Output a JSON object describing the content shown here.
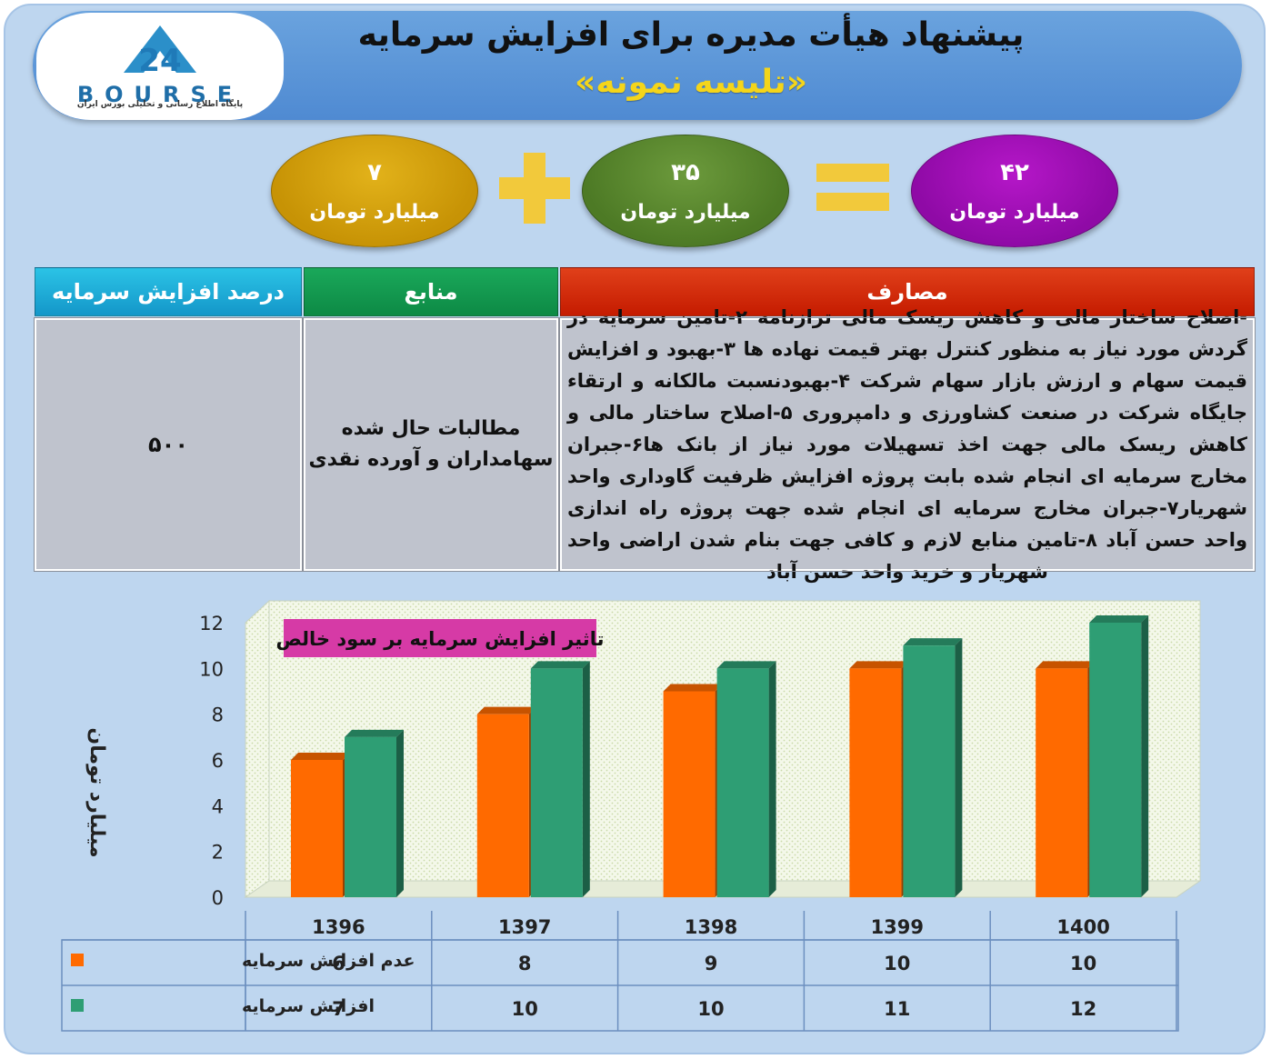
{
  "header": {
    "title": "پیشنهاد هیأت مدیره برای افزایش سرمایه",
    "subtitle": "«تلیسه نمونه»",
    "logo": {
      "wordmark": "BOURSE",
      "mark": "24",
      "caption": "پایگاه اطلاع رسانی و تحلیلی بورس ایران"
    }
  },
  "equation": {
    "left": {
      "value": "۷",
      "unit": "میلیارد تومان",
      "color": "#c99a0a"
    },
    "middle": {
      "value": "۳۵",
      "unit": "میلیارد تومان",
      "color": "#5a8a2e"
    },
    "result": {
      "value": "۴۲",
      "unit": "میلیارد تومان",
      "color": "#a00fb8"
    },
    "operator_color": "#f2c93b"
  },
  "table": {
    "headers": {
      "costs": "مصارف",
      "sources": "منابع",
      "percent": "درصد افزایش سرمایه"
    },
    "costs_text": "-اصلاح ساختار مالی و کاهش ریسک مالی ترازنامه ۲-تامین سرمایه در گردش مورد نیاز به منظور کنترل بهتر قیمت نهاده ها ۳-بهبود و افزایش قیمت سهام و ارزش بازار سهام شرکت ۴-بهبودنسبت مالکانه و ارتقاء جایگاه شرکت در صنعت کشاورزی و دامپروری ۵-اصلاح ساختار مالی و کاهش ریسک مالی جهت اخذ تسهیلات مورد نیاز از بانک ها۶-جبران مخارج سرمایه ای انجام شده بابت پروژه افزایش ظرفیت گاوداری واحد شهریار۷-جبران مخارج سرمایه ای انجام شده جهت پروژه راه اندازی واحد حسن آباد ۸-تامین منابع لازم و کافی جهت بنام شدن اراضی واحد شهریار و خرید واحد حسن آباد",
    "sources_line1": "مطالبات حال شده",
    "sources_line2": "سهامداران و آورده نقدی",
    "percent_value": "۵۰۰"
  },
  "chart_data": {
    "type": "bar",
    "title": "تاثیر افزایش سرمایه بر سود خالص",
    "ylabel": "میلیارد تومان",
    "ylim": [
      0,
      12
    ],
    "yticks": [
      0,
      2,
      4,
      6,
      8,
      10,
      12
    ],
    "grid": false,
    "legend": "data-table",
    "categories": [
      "1396",
      "1397",
      "1398",
      "1399",
      "1400"
    ],
    "series": [
      {
        "name": "عدم افزایش سرمایه",
        "values": [
          6,
          8,
          9,
          10,
          10
        ],
        "color": "#ff6a00"
      },
      {
        "name": "افزایش سرمایه",
        "values": [
          7,
          10,
          10,
          11,
          12
        ],
        "color": "#2e9e74"
      }
    ],
    "title_box_color": "#d63aa6"
  }
}
